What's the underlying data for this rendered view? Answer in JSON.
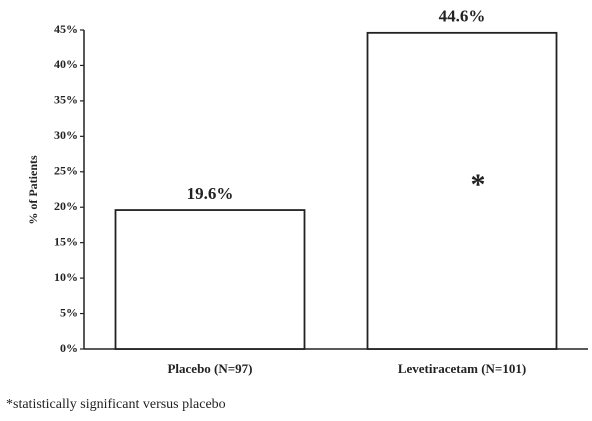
{
  "chart_data": {
    "type": "bar",
    "y_label": "% of Patients",
    "categories": [
      "Placebo (N=97)",
      "Levetiracetam (N=101)"
    ],
    "values": [
      19.6,
      44.6
    ],
    "value_labels": [
      "19.6%",
      "44.6%"
    ],
    "color": "#ffffff",
    "ylim": [
      0,
      45
    ],
    "yticks": [
      {
        "value": 0,
        "label": "0%"
      },
      {
        "value": 5,
        "label": "5%"
      },
      {
        "value": 10,
        "label": "10%"
      },
      {
        "value": 15,
        "label": "15%"
      },
      {
        "value": 20,
        "label": "20%"
      },
      {
        "value": 25,
        "label": "25%"
      },
      {
        "value": 30,
        "label": "30%"
      },
      {
        "value": 35,
        "label": "35%"
      },
      {
        "value": 40,
        "label": "40%"
      },
      {
        "value": 45,
        "label": "45%"
      }
    ],
    "grid": false,
    "annotation": "*",
    "footnote": "*statistically significant versus placebo"
  }
}
